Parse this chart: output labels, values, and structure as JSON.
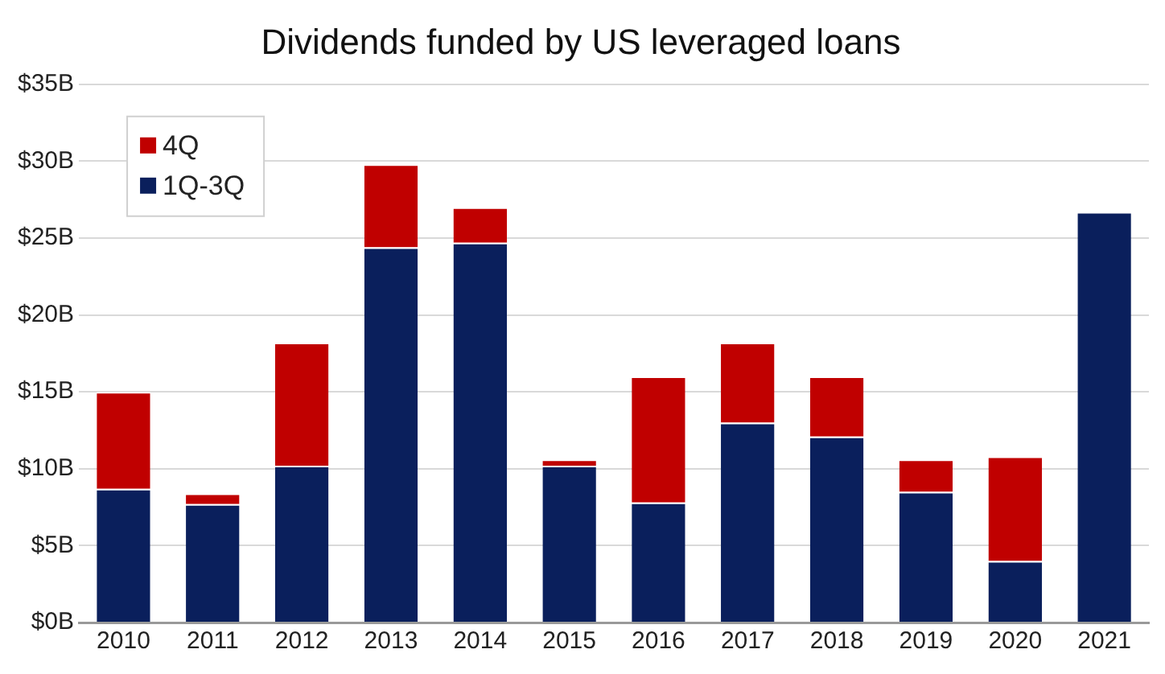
{
  "chart_data": {
    "type": "bar",
    "title": "Dividends funded by US leveraged loans",
    "categories": [
      "2010",
      "2011",
      "2012",
      "2013",
      "2014",
      "2015",
      "2016",
      "2017",
      "2018",
      "2019",
      "2020",
      "2021"
    ],
    "series": [
      {
        "name": "1Q-3Q",
        "color": "#0a1f5c",
        "values": [
          8.7,
          7.7,
          10.2,
          24.4,
          24.7,
          10.2,
          7.8,
          13.0,
          12.1,
          8.5,
          4.0,
          26.7
        ]
      },
      {
        "name": "4Q",
        "color": "#c00000",
        "values": [
          6.3,
          0.7,
          8.0,
          5.4,
          2.3,
          0.4,
          8.2,
          5.2,
          3.9,
          2.1,
          6.8,
          null
        ]
      }
    ],
    "stacked": true,
    "ylim": [
      0,
      35
    ],
    "yticks": [
      {
        "value": 0,
        "label": "$0B"
      },
      {
        "value": 5,
        "label": "$5B"
      },
      {
        "value": 10,
        "label": "$10B"
      },
      {
        "value": 15,
        "label": "$15B"
      },
      {
        "value": 20,
        "label": "$20B"
      },
      {
        "value": 25,
        "label": "$25B"
      },
      {
        "value": 30,
        "label": "$30B"
      },
      {
        "value": 35,
        "label": "$35B"
      }
    ],
    "grid": "y",
    "legend": "top left"
  }
}
